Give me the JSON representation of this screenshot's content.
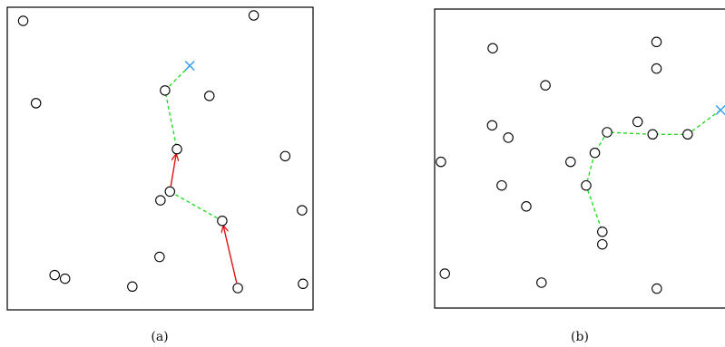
{
  "panels": [
    {
      "id": "a",
      "caption": "(a)",
      "colors": {
        "path": "#22dd22",
        "arrow": "#dd1111",
        "goal": "#3399ee",
        "node": "#000000"
      },
      "nodes": [
        [
          0.052,
          0.045
        ],
        [
          0.806,
          0.027
        ],
        [
          0.094,
          0.317
        ],
        [
          0.661,
          0.293
        ],
        [
          0.516,
          0.275
        ],
        [
          0.555,
          0.469
        ],
        [
          0.909,
          0.492
        ],
        [
          0.532,
          0.609
        ],
        [
          0.501,
          0.638
        ],
        [
          0.703,
          0.706
        ],
        [
          0.964,
          0.671
        ],
        [
          0.498,
          0.825
        ],
        [
          0.155,
          0.885
        ],
        [
          0.189,
          0.897
        ],
        [
          0.409,
          0.923
        ],
        [
          0.754,
          0.928
        ],
        [
          0.967,
          0.914
        ]
      ],
      "goal": [
        0.597,
        0.193
      ],
      "dashed_path": [
        [
          0.597,
          0.193
        ],
        [
          0.516,
          0.275
        ],
        [
          0.555,
          0.469
        ]
      ],
      "dashed_path_2": [
        [
          0.532,
          0.609
        ],
        [
          0.703,
          0.706
        ]
      ],
      "arrows": [
        {
          "from": [
            0.532,
            0.609
          ],
          "to": [
            0.555,
            0.469
          ]
        },
        {
          "from": [
            0.754,
            0.928
          ],
          "to": [
            0.703,
            0.706
          ]
        }
      ]
    },
    {
      "id": "b",
      "caption": "(b)",
      "colors": {
        "path": "#22dd22",
        "goal": "#3399ee",
        "node": "#000000"
      },
      "nodes": [
        [
          0.194,
          0.131
        ],
        [
          0.741,
          0.11
        ],
        [
          0.741,
          0.199
        ],
        [
          0.37,
          0.255
        ],
        [
          0.192,
          0.389
        ],
        [
          0.246,
          0.43
        ],
        [
          0.678,
          0.377
        ],
        [
          0.535,
          0.481
        ],
        [
          0.576,
          0.412
        ],
        [
          0.728,
          0.419
        ],
        [
          0.845,
          0.419
        ],
        [
          0.021,
          0.511
        ],
        [
          0.454,
          0.511
        ],
        [
          0.224,
          0.59
        ],
        [
          0.506,
          0.59
        ],
        [
          0.306,
          0.66
        ],
        [
          0.56,
          0.745
        ],
        [
          0.56,
          0.787
        ],
        [
          0.034,
          0.885
        ],
        [
          0.357,
          0.915
        ],
        [
          0.742,
          0.935
        ]
      ],
      "goal": [
        0.955,
        0.338
      ],
      "dashed_path": [
        [
          0.955,
          0.338
        ],
        [
          0.845,
          0.419
        ],
        [
          0.728,
          0.419
        ],
        [
          0.576,
          0.412
        ],
        [
          0.535,
          0.481
        ],
        [
          0.506,
          0.59
        ],
        [
          0.56,
          0.745
        ]
      ]
    }
  ]
}
